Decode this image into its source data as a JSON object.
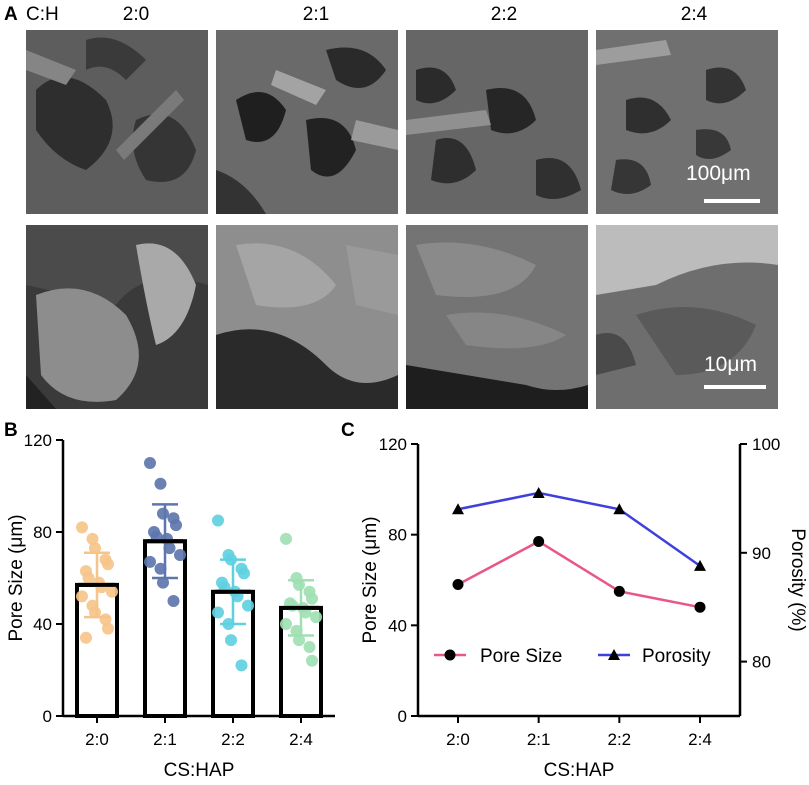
{
  "panel_a": {
    "letter": "A",
    "ratio_label": "C:H",
    "columns": [
      "2:0",
      "2:1",
      "2:2",
      "2:4"
    ],
    "scalebar_top": "100μm",
    "scalebar_bottom": "10μm"
  },
  "panel_b": {
    "letter": "B",
    "chart_data": {
      "type": "bar",
      "categories": [
        "2:0",
        "2:1",
        "2:2",
        "2:4"
      ],
      "values": [
        57,
        76,
        54,
        47
      ],
      "errors": [
        14,
        16,
        14,
        12
      ],
      "points": [
        [
          82,
          77,
          73,
          68,
          66,
          63,
          60,
          58,
          56,
          54,
          52,
          48,
          45,
          42,
          38,
          34
        ],
        [
          110,
          101,
          88,
          86,
          83,
          80,
          78,
          77,
          73,
          70,
          67,
          64,
          58,
          50
        ],
        [
          85,
          70,
          68,
          64,
          62,
          58,
          56,
          54,
          52,
          48,
          45,
          40,
          33,
          22
        ],
        [
          77,
          60,
          57,
          54,
          51,
          49,
          48,
          47,
          45,
          43,
          40,
          37,
          33,
          30,
          24
        ]
      ],
      "point_colors": [
        "#f6c48a",
        "#5e76ae",
        "#5fd0df",
        "#9fe0b3"
      ],
      "xlabel": "CS:HAP",
      "ylabel": "Pore Size (μm)",
      "ylim": [
        0,
        120
      ],
      "yticks": [
        "0",
        "40",
        "80",
        "120"
      ]
    }
  },
  "panel_c": {
    "letter": "C",
    "chart_data": {
      "type": "line",
      "categories": [
        "2:0",
        "2:1",
        "2:2",
        "2:4"
      ],
      "series": [
        {
          "name": "Pore Size",
          "axis": "left",
          "values": [
            58,
            77,
            55,
            48
          ],
          "color": "#e9578a",
          "marker": "circle"
        },
        {
          "name": "Porosity",
          "axis": "right",
          "values": [
            94,
            95.5,
            94,
            88.8
          ],
          "color": "#3f3fdc",
          "marker": "triangle"
        }
      ],
      "xlabel": "CS:HAP",
      "ylabel_left": "Pore Size (μm)",
      "ylabel_right": "Porosity (%)",
      "ylim_left": [
        0,
        120
      ],
      "ylim_right": [
        75,
        100
      ],
      "yticks_left": [
        "0",
        "40",
        "80",
        "120"
      ],
      "yticks_right": [
        "80",
        "90",
        "100"
      ]
    }
  }
}
